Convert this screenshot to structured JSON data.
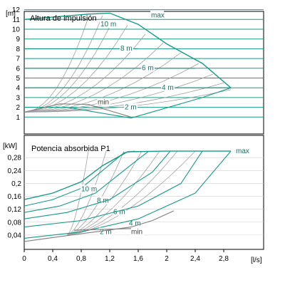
{
  "chart_data": [
    {
      "type": "line",
      "title": "Altura de impulsión",
      "ylabel": "[m]",
      "xlabel": "",
      "ylim": [
        0,
        12
      ],
      "xlim": [
        0,
        3.2
      ],
      "yticks": [
        1,
        2,
        3,
        4,
        5,
        6,
        7,
        8,
        9,
        10,
        11,
        12
      ],
      "grid": true,
      "setpoint_curves": [
        {
          "label": "max",
          "points": [
            [
              0,
              11.0
            ],
            [
              0.9,
              11.55
            ],
            [
              1.2,
              11.65
            ],
            [
              1.6,
              10.5
            ],
            [
              2.0,
              8.5
            ],
            [
              2.5,
              6.5
            ],
            [
              2.9,
              4.0
            ]
          ]
        },
        {
          "label": "10 m",
          "points": [
            [
              0,
              10.0
            ],
            [
              0.9,
              10.0
            ],
            [
              1.3,
              10.0
            ]
          ]
        },
        {
          "label": "8 m",
          "points": [
            [
              0,
              8.0
            ],
            [
              1.0,
              8.0
            ],
            [
              1.6,
              8.0
            ]
          ]
        },
        {
          "label": "6 m",
          "points": [
            [
              0,
              6.0
            ],
            [
              1.3,
              6.0
            ],
            [
              2.4,
              6.0
            ]
          ]
        },
        {
          "label": "4 m",
          "points": [
            [
              0,
              4.0
            ],
            [
              1.3,
              4.0
            ],
            [
              2.9,
              4.0
            ]
          ]
        },
        {
          "label": "2 m",
          "points": [
            [
              0,
              2.0
            ],
            [
              0.6,
              2.0
            ],
            [
              1.5,
              0.9
            ],
            [
              2.0,
              1.95
            ],
            [
              2.5,
              3.0
            ],
            [
              2.9,
              4.0
            ]
          ]
        },
        {
          "label": "min",
          "points": [
            [
              0,
              1.5
            ],
            [
              0.5,
              2.35
            ],
            [
              0.9,
              2.3
            ],
            [
              1.2,
              1.65
            ],
            [
              1.5,
              1.0
            ]
          ]
        }
      ],
      "system_curves_max_head": [
        11.2,
        11.4,
        11.0,
        10.4,
        9.5,
        8.6,
        7.6,
        6.5,
        5.4,
        4.5,
        3.8
      ]
    },
    {
      "type": "line",
      "title": "Potencia absorbida P1",
      "ylabel": "[kW]",
      "xlabel": "[l/s]",
      "ylim": [
        0,
        0.32
      ],
      "xlim": [
        0,
        3.2
      ],
      "xticks": [
        "0",
        "0,4",
        "0,8",
        "1,2",
        "1,6",
        "2",
        "2,4",
        "2,8"
      ],
      "yticks": [
        "0,04",
        "0,08",
        "0,12",
        "0,16",
        "0,2",
        "0,24",
        "0,28"
      ],
      "grid": true,
      "setpoint_curves": [
        {
          "label": "max",
          "points": [
            [
              0,
              0.15
            ],
            [
              0.4,
              0.17
            ],
            [
              0.8,
              0.205
            ],
            [
              1.1,
              0.255
            ],
            [
              1.45,
              0.298
            ],
            [
              2.0,
              0.3
            ],
            [
              2.9,
              0.3
            ]
          ]
        },
        {
          "label": "10 m",
          "points": [
            [
              0,
              0.13
            ],
            [
              0.4,
              0.15
            ],
            [
              0.8,
              0.185
            ],
            [
              1.1,
              0.24
            ],
            [
              1.4,
              0.295
            ],
            [
              1.55,
              0.3
            ]
          ]
        },
        {
          "label": "8 m",
          "points": [
            [
              0,
              0.11
            ],
            [
              0.5,
              0.13
            ],
            [
              1.0,
              0.17
            ],
            [
              1.4,
              0.24
            ],
            [
              1.6,
              0.275
            ],
            [
              1.75,
              0.3
            ]
          ]
        },
        {
          "label": "6 m",
          "points": [
            [
              0,
              0.09
            ],
            [
              0.6,
              0.11
            ],
            [
              1.2,
              0.15
            ],
            [
              1.8,
              0.235
            ],
            [
              2.05,
              0.3
            ]
          ]
        },
        {
          "label": "4 m",
          "points": [
            [
              0,
              0.065
            ],
            [
              0.8,
              0.085
            ],
            [
              1.6,
              0.13
            ],
            [
              2.2,
              0.2
            ],
            [
              2.5,
              0.3
            ]
          ]
        },
        {
          "label": "2 m",
          "points": [
            [
              0,
              0.03
            ],
            [
              0.8,
              0.05
            ],
            [
              1.6,
              0.09
            ],
            [
              2.4,
              0.17
            ],
            [
              2.9,
              0.3
            ]
          ]
        },
        {
          "label": "min",
          "points": [
            [
              0,
              0.02
            ],
            [
              0.5,
              0.035
            ],
            [
              1.0,
              0.05
            ],
            [
              1.5,
              0.065
            ],
            [
              1.8,
              0.085
            ],
            [
              2.1,
              0.115
            ]
          ]
        }
      ],
      "min_segment": [
        [
          0.7,
          0.055
        ],
        [
          1.5,
          0.06
        ]
      ]
    }
  ],
  "colors": {
    "curve": "#169b83",
    "aux": "#a0a0a0",
    "min": "#7e7e7e",
    "axis": "#000000",
    "label_text": "#444444"
  }
}
